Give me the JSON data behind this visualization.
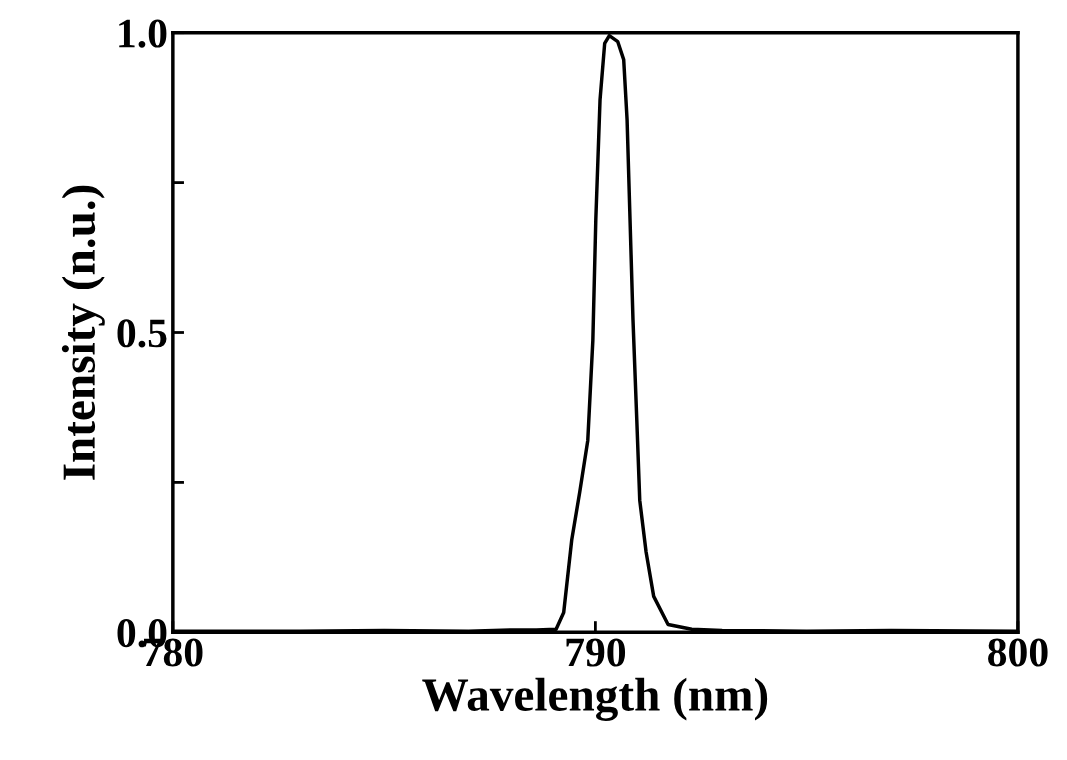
{
  "chart_data": {
    "type": "line",
    "xlabel": "Wavelength (nm)",
    "ylabel": "Intensity (n.u.)",
    "xlim": [
      780,
      800
    ],
    "ylim": [
      0,
      1.0
    ],
    "xticks": [
      780,
      790,
      800
    ],
    "yticks": [
      {
        "value": 0,
        "label": "0.0"
      },
      {
        "value": 0.25,
        "label": null
      },
      {
        "value": 0.5,
        "label": "0.5"
      },
      {
        "value": 0.75,
        "label": null
      },
      {
        "value": 1.0,
        "label": "1.0"
      }
    ],
    "marker": "none",
    "line_style": "solid",
    "series": [
      {
        "color": "#000000",
        "x": [
          780,
          783,
          785,
          787,
          788,
          788.6,
          789.07,
          789.25,
          789.44,
          789.63,
          789.82,
          789.94,
          790.01,
          790.11,
          790.22,
          790.33,
          790.53,
          790.67,
          790.75,
          790.82,
          790.89,
          790.98,
          791.05,
          791.2,
          791.38,
          791.72,
          792.28,
          793,
          795,
          797,
          800
        ],
        "values": [
          0.002,
          0.002,
          0.003,
          0.002,
          0.004,
          0.004,
          0.005,
          0.033,
          0.154,
          0.234,
          0.32,
          0.487,
          0.688,
          0.888,
          0.982,
          0.995,
          0.985,
          0.955,
          0.855,
          0.688,
          0.521,
          0.354,
          0.22,
          0.134,
          0.06,
          0.013,
          0.005,
          0.003,
          0.002,
          0.003,
          0.002
        ]
      }
    ]
  }
}
